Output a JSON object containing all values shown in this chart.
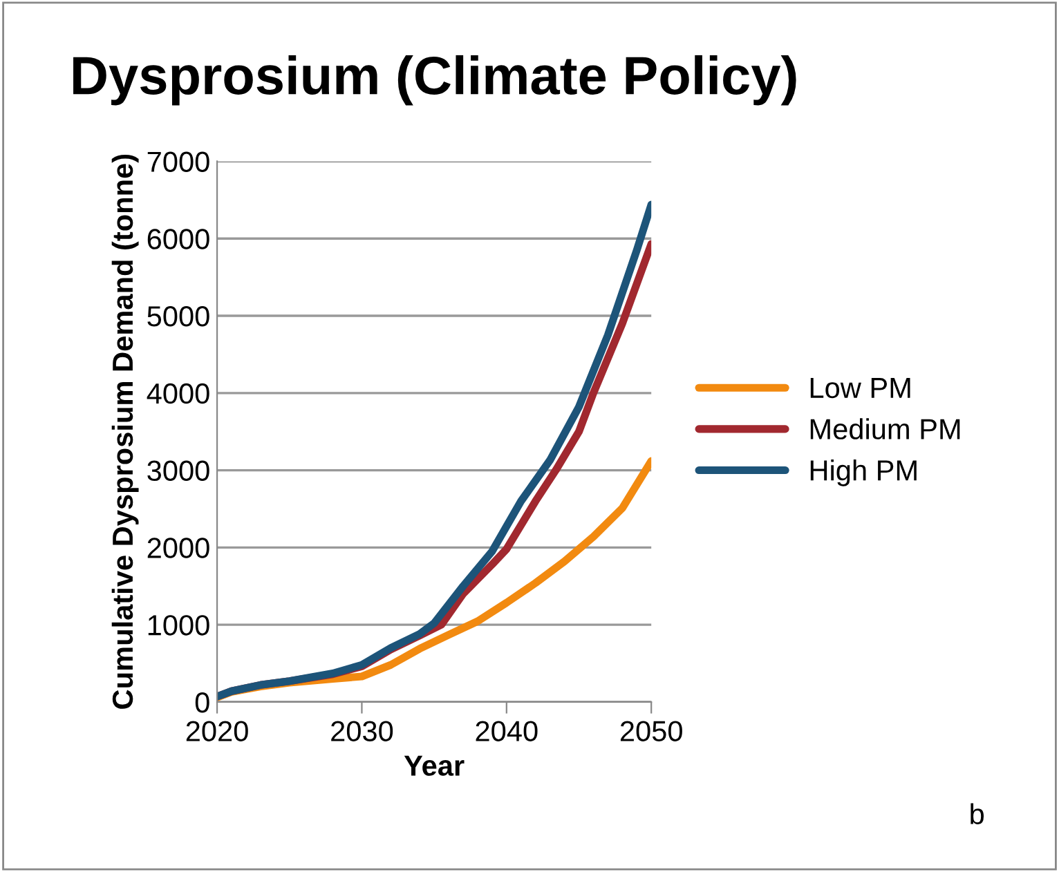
{
  "chart_data": {
    "type": "line",
    "title": "Dysprosium (Climate Policy)",
    "xlabel": "Year",
    "ylabel": "Cumulative Dysprosium Demand (tonne)",
    "xlim": [
      2020,
      2050
    ],
    "xticks": [
      2020,
      2030,
      2040,
      2050
    ],
    "ylim": [
      0,
      7000
    ],
    "yticks": [
      0,
      1000,
      2000,
      3000,
      4000,
      5000,
      6000,
      7000
    ],
    "grid": "y",
    "legend": "right",
    "marker": "none",
    "line_style": "solid",
    "annotations": [
      "b"
    ],
    "series": [
      {
        "name": "Low PM",
        "color": "#f28a10",
        "x": [
          2020,
          2021,
          2023,
          2025,
          2028,
          2030,
          2032,
          2034,
          2036,
          2038,
          2040,
          2042,
          2044,
          2046,
          2048,
          2050
        ],
        "values": [
          60,
          130,
          200,
          250,
          300,
          330,
          480,
          690,
          870,
          1045,
          1285,
          1540,
          1820,
          2140,
          2510,
          3120
        ]
      },
      {
        "name": "Medium PM",
        "color": "#a1282f",
        "x": [
          2020,
          2021,
          2023,
          2025,
          2028,
          2030,
          2032,
          2034,
          2035.5,
          2037,
          2039,
          2040,
          2042,
          2043.4,
          2045,
          2046,
          2048,
          2050
        ],
        "values": [
          70,
          140,
          220,
          270,
          360,
          460,
          680,
          860,
          1000,
          1400,
          1780,
          1980,
          2600,
          3000,
          3500,
          4000,
          4900,
          5930
        ]
      },
      {
        "name": "High PM",
        "color": "#1d5479",
        "x": [
          2020,
          2021,
          2023,
          2025,
          2028,
          2030,
          2032,
          2034,
          2035,
          2037,
          2039,
          2041,
          2043,
          2045,
          2047,
          2049,
          2050
        ],
        "values": [
          70,
          140,
          220,
          270,
          370,
          480,
          700,
          880,
          1020,
          1500,
          1950,
          2600,
          3130,
          3820,
          4750,
          5850,
          6440
        ]
      }
    ]
  }
}
